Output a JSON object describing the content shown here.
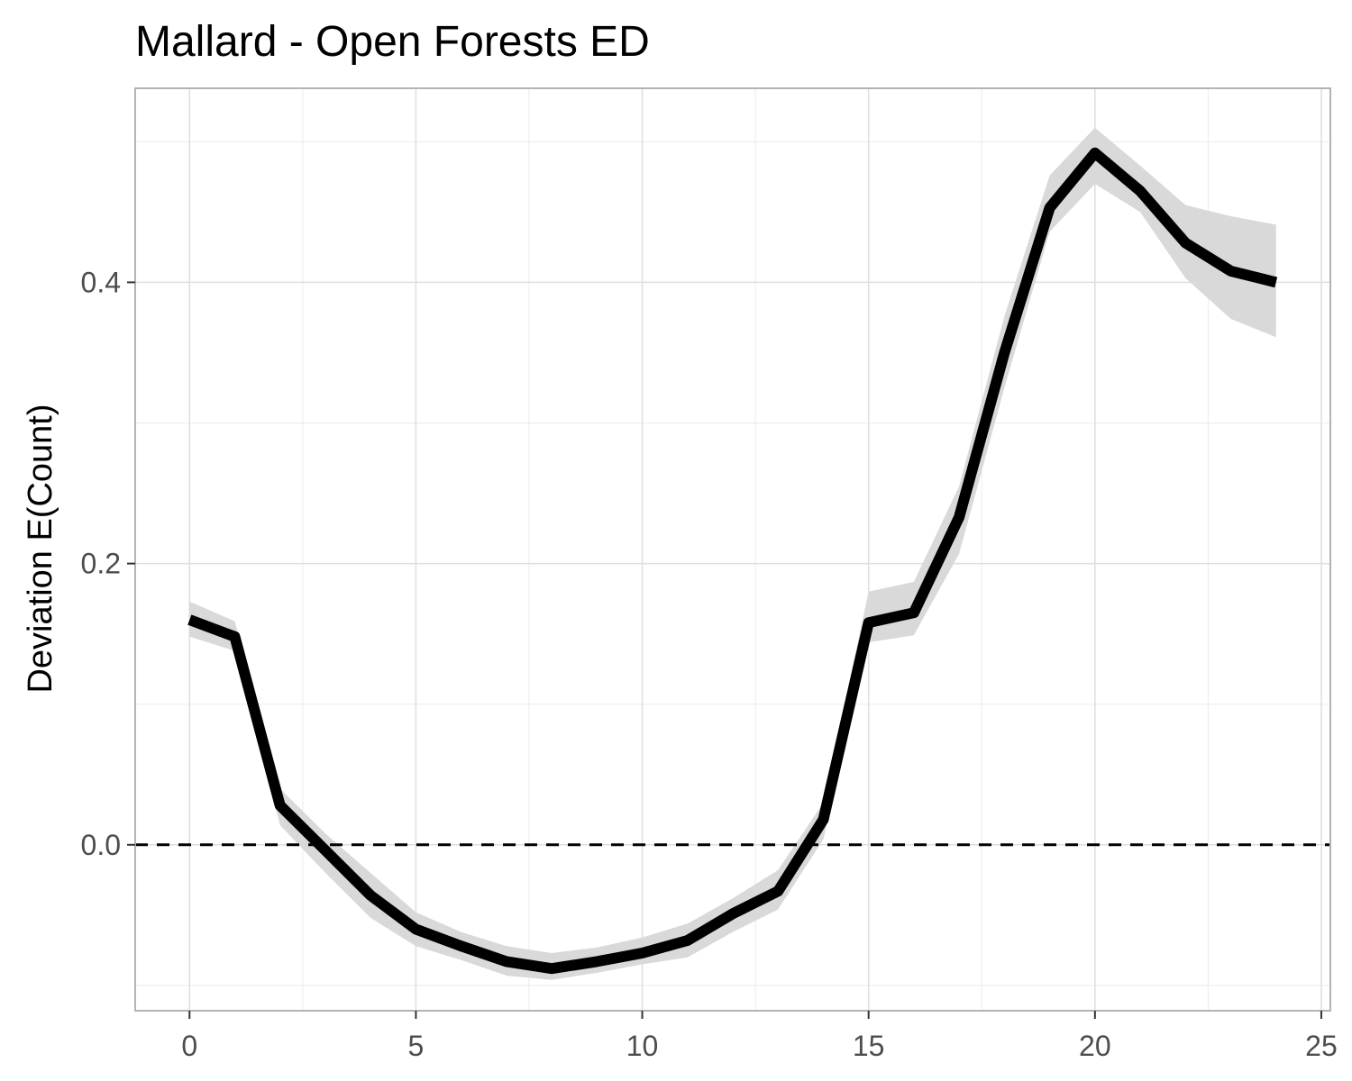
{
  "chart_data": {
    "type": "line",
    "title": "Mallard - Open Forests ED",
    "xlabel": "",
    "ylabel": "Deviation E(Count)",
    "xlim": [
      -1.2,
      25.2
    ],
    "ylim": [
      -0.118,
      0.538
    ],
    "x_ticks": [
      0,
      5,
      10,
      15,
      20,
      25
    ],
    "x_tick_labels": [
      "0",
      "5",
      "10",
      "15",
      "20",
      "25"
    ],
    "y_ticks": [
      0.0,
      0.2,
      0.4
    ],
    "y_tick_labels": [
      "0.0",
      "0.2",
      "0.4"
    ],
    "grid": true,
    "reference_line": {
      "y": 0.0,
      "style": "dashed"
    },
    "series": [
      {
        "x": [
          0,
          1,
          2,
          3,
          4,
          5,
          6,
          7,
          8,
          9,
          10,
          11,
          12,
          13,
          14,
          15,
          16,
          17,
          18,
          19,
          20,
          21,
          22,
          23,
          24
        ],
        "y": [
          0.16,
          0.148,
          0.028,
          -0.004,
          -0.036,
          -0.06,
          -0.072,
          -0.083,
          -0.088,
          -0.083,
          -0.077,
          -0.068,
          -0.049,
          -0.033,
          0.018,
          0.158,
          0.165,
          0.233,
          0.35,
          0.453,
          0.492,
          0.465,
          0.428,
          0.408,
          0.4
        ],
        "lower": [
          0.148,
          0.138,
          0.014,
          -0.02,
          -0.052,
          -0.072,
          -0.082,
          -0.093,
          -0.096,
          -0.091,
          -0.085,
          -0.08,
          -0.062,
          -0.046,
          0.004,
          0.144,
          0.149,
          0.207,
          0.325,
          0.436,
          0.47,
          0.45,
          0.403,
          0.374,
          0.361
        ],
        "upper": [
          0.173,
          0.159,
          0.04,
          0.008,
          -0.02,
          -0.048,
          -0.062,
          -0.072,
          -0.077,
          -0.073,
          -0.066,
          -0.056,
          -0.038,
          -0.018,
          0.03,
          0.18,
          0.187,
          0.255,
          0.376,
          0.476,
          0.51,
          0.483,
          0.455,
          0.447,
          0.441
        ]
      }
    ]
  }
}
